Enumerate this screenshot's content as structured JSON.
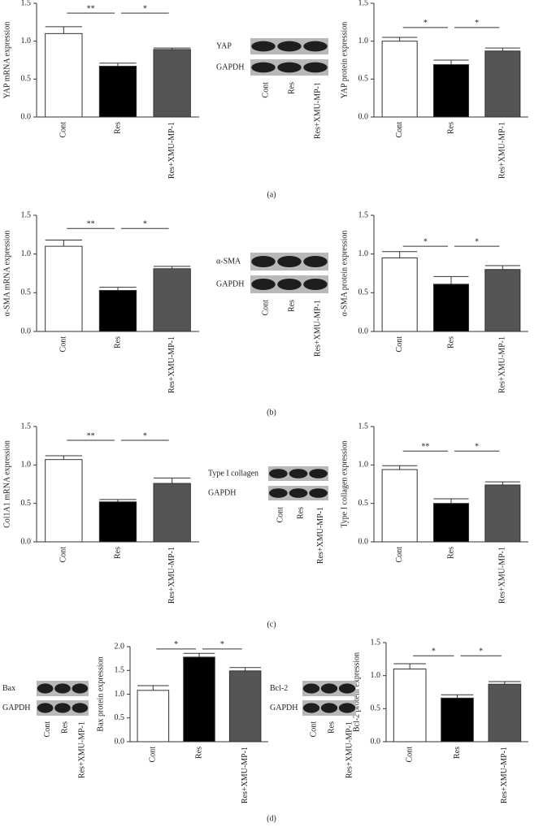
{
  "chart_data": [
    {
      "type": "bar",
      "ylabel": "YAP mRNA expression",
      "categories": [
        "Cont",
        "Res",
        "Res+XMU-MP-1"
      ],
      "values": [
        1.1,
        0.67,
        0.89
      ],
      "errors": [
        0.09,
        0.04,
        0.02
      ],
      "colors": [
        "#ffffff",
        "#000000",
        "#555555"
      ],
      "ylim": [
        0,
        1.5
      ],
      "yticks": [
        {
          "value": 0,
          "label": "0.0"
        },
        {
          "value": 0.5,
          "label": "0.5"
        },
        {
          "value": 1,
          "label": "1.0"
        },
        {
          "value": 1.5,
          "label": "1.5"
        }
      ],
      "significance": [
        {
          "label": "**",
          "groups": [
            0,
            1
          ],
          "y": 1.37
        },
        {
          "label": "*",
          "groups": [
            1,
            2
          ],
          "y": 1.37
        }
      ]
    },
    {
      "type": "bar",
      "ylabel": "YAP protein expression",
      "categories": [
        "Cont",
        "Res",
        "Res+XMU-MP-1"
      ],
      "values": [
        1.0,
        0.69,
        0.87
      ],
      "errors": [
        0.05,
        0.06,
        0.04
      ],
      "colors": [
        "#ffffff",
        "#000000",
        "#555555"
      ],
      "ylim": [
        0,
        1.5
      ],
      "yticks": [
        {
          "value": 0,
          "label": "0.0"
        },
        {
          "value": 0.5,
          "label": "0.5"
        },
        {
          "value": 1,
          "label": "1.0"
        },
        {
          "value": 1.5,
          "label": "1.5"
        }
      ],
      "significance": [
        {
          "label": "*",
          "groups": [
            0,
            1
          ],
          "y": 1.18
        },
        {
          "label": "*",
          "groups": [
            1,
            2
          ],
          "y": 1.18
        }
      ]
    },
    {
      "type": "bar",
      "ylabel": "α-SMA mRNA expression",
      "categories": [
        "Cont",
        "Res",
        "Res+XMU-MP-1"
      ],
      "values": [
        1.1,
        0.53,
        0.81
      ],
      "errors": [
        0.08,
        0.04,
        0.03
      ],
      "colors": [
        "#ffffff",
        "#000000",
        "#555555"
      ],
      "ylim": [
        0,
        1.5
      ],
      "yticks": [
        {
          "value": 0,
          "label": "0.0"
        },
        {
          "value": 0.5,
          "label": "0.5"
        },
        {
          "value": 1,
          "label": "1.0"
        },
        {
          "value": 1.5,
          "label": "1.5"
        }
      ],
      "significance": [
        {
          "label": "**",
          "groups": [
            0,
            1
          ],
          "y": 1.33
        },
        {
          "label": "*",
          "groups": [
            1,
            2
          ],
          "y": 1.33
        }
      ]
    },
    {
      "type": "bar",
      "ylabel": "α-SMA protein expression",
      "categories": [
        "Cont",
        "Res",
        "Res+XMU-MP-1"
      ],
      "values": [
        0.95,
        0.61,
        0.8
      ],
      "errors": [
        0.08,
        0.1,
        0.05
      ],
      "colors": [
        "#ffffff",
        "#000000",
        "#555555"
      ],
      "ylim": [
        0,
        1.5
      ],
      "yticks": [
        {
          "value": 0,
          "label": "0.0"
        },
        {
          "value": 0.5,
          "label": "0.5"
        },
        {
          "value": 1,
          "label": "1.0"
        },
        {
          "value": 1.5,
          "label": "1.5"
        }
      ],
      "significance": [
        {
          "label": "*",
          "groups": [
            0,
            1
          ],
          "y": 1.1
        },
        {
          "label": "*",
          "groups": [
            1,
            2
          ],
          "y": 1.1
        }
      ]
    },
    {
      "type": "bar",
      "ylabel": "Col1A1 mRNA expression",
      "categories": [
        "Cont",
        "Res",
        "Res+XMU-MP-1"
      ],
      "values": [
        1.07,
        0.52,
        0.76
      ],
      "errors": [
        0.05,
        0.03,
        0.07
      ],
      "colors": [
        "#ffffff",
        "#000000",
        "#555555"
      ],
      "ylim": [
        0,
        1.5
      ],
      "yticks": [
        {
          "value": 0,
          "label": "0.0"
        },
        {
          "value": 0.5,
          "label": "0.5"
        },
        {
          "value": 1,
          "label": "1.0"
        },
        {
          "value": 1.5,
          "label": "1.5"
        }
      ],
      "significance": [
        {
          "label": "**",
          "groups": [
            0,
            1
          ],
          "y": 1.32
        },
        {
          "label": "*",
          "groups": [
            1,
            2
          ],
          "y": 1.32
        }
      ]
    },
    {
      "type": "bar",
      "ylabel": "Type I collagen expression",
      "categories": [
        "Cont",
        "Res",
        "Res+XMU-MP-1"
      ],
      "values": [
        0.94,
        0.5,
        0.74
      ],
      "errors": [
        0.05,
        0.06,
        0.04
      ],
      "colors": [
        "#ffffff",
        "#000000",
        "#555555"
      ],
      "ylim": [
        0,
        1.5
      ],
      "yticks": [
        {
          "value": 0,
          "label": "0.0"
        },
        {
          "value": 0.5,
          "label": "0.5"
        },
        {
          "value": 1,
          "label": "1.0"
        },
        {
          "value": 1.5,
          "label": "1.5"
        }
      ],
      "significance": [
        {
          "label": "**",
          "groups": [
            0,
            1
          ],
          "y": 1.18
        },
        {
          "label": "*",
          "groups": [
            1,
            2
          ],
          "y": 1.18
        }
      ]
    },
    {
      "type": "bar",
      "ylabel": "Bax protein expression",
      "categories": [
        "Cont",
        "Res",
        "Res+XMU-MP-1"
      ],
      "values": [
        1.08,
        1.78,
        1.49
      ],
      "errors": [
        0.1,
        0.08,
        0.07
      ],
      "colors": [
        "#ffffff",
        "#000000",
        "#555555"
      ],
      "ylim": [
        0,
        2
      ],
      "yticks": [
        {
          "value": 0,
          "label": "0.0"
        },
        {
          "value": 0.5,
          "label": "0.5"
        },
        {
          "value": 1,
          "label": "1.0"
        },
        {
          "value": 1.5,
          "label": "1.5"
        },
        {
          "value": 2,
          "label": "2.0"
        }
      ],
      "significance": [
        {
          "label": "*",
          "groups": [
            0,
            1
          ],
          "y": 1.95
        },
        {
          "label": "*",
          "groups": [
            1,
            2
          ],
          "y": 1.95
        }
      ]
    },
    {
      "type": "bar",
      "ylabel": "Bcl-2 protein expression",
      "categories": [
        "Cont",
        "Res",
        "Res+XMU-MP-1"
      ],
      "values": [
        1.1,
        0.66,
        0.87
      ],
      "errors": [
        0.08,
        0.05,
        0.04
      ],
      "colors": [
        "#ffffff",
        "#000000",
        "#555555"
      ],
      "ylim": [
        0,
        1.5
      ],
      "yticks": [
        {
          "value": 0,
          "label": "0.0"
        },
        {
          "value": 0.5,
          "label": "0.5"
        },
        {
          "value": 1,
          "label": "1.0"
        },
        {
          "value": 1.5,
          "label": "1.5"
        }
      ],
      "significance": [
        {
          "label": "*",
          "groups": [
            0,
            1
          ],
          "y": 1.3
        },
        {
          "label": "*",
          "groups": [
            1,
            2
          ],
          "y": 1.3
        }
      ]
    }
  ],
  "blots": [
    {
      "rows": [
        "YAP",
        "GAPDH"
      ],
      "lanes": [
        "Cont",
        "Res",
        "Res+XMU-MP-1"
      ]
    },
    {
      "rows": [
        "α-SMA",
        "GAPDH"
      ],
      "lanes": [
        "Cont",
        "Res",
        "Res+XMU-MP-1"
      ]
    },
    {
      "rows": [
        "Type I collagen",
        "GAPDH"
      ],
      "lanes": [
        "Cont",
        "Res",
        "Res+XMU-MP-1"
      ]
    },
    {
      "rows": [
        "Bax",
        "GAPDH"
      ],
      "lanes": [
        "Cont",
        "Res",
        "Res+XMU-MP-1"
      ]
    },
    {
      "rows": [
        "Bcl-2",
        "GAPDH"
      ],
      "lanes": [
        "Cont",
        "Res",
        "Res+XMU-MP-1"
      ]
    }
  ],
  "panel_labels": [
    "(a)",
    "(b)",
    "(c)",
    "(d)"
  ]
}
